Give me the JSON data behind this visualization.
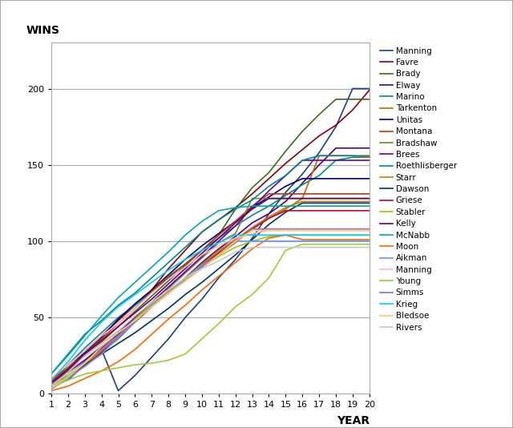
{
  "title_y": "WINS",
  "title_x": "YEAR",
  "xlim": [
    1,
    20
  ],
  "ylim": [
    0,
    230
  ],
  "yticks": [
    0,
    50,
    100,
    150,
    200
  ],
  "xticks": [
    1,
    2,
    3,
    4,
    5,
    6,
    7,
    8,
    9,
    10,
    11,
    12,
    13,
    14,
    15,
    16,
    17,
    18,
    19,
    20
  ],
  "series": [
    {
      "name": "Manning",
      "color": "#1F3F7F",
      "data": [
        6,
        9,
        19,
        29,
        2,
        12,
        24,
        36,
        50,
        62,
        76,
        88,
        102,
        118,
        132,
        144,
        158,
        175,
        200,
        200
      ]
    },
    {
      "name": "Favre",
      "color": "#8B0000",
      "data": [
        8,
        19,
        28,
        38,
        48,
        58,
        68,
        82,
        94,
        106,
        114,
        122,
        131,
        141,
        151,
        160,
        169,
        176,
        186,
        199
      ]
    },
    {
      "name": "Brady",
      "color": "#3A6E1A",
      "data": [
        6,
        15,
        25,
        34,
        44,
        54,
        64,
        74,
        84,
        94,
        104,
        121,
        135,
        145,
        159,
        172,
        183,
        193,
        193,
        193
      ]
    },
    {
      "name": "Elway",
      "color": "#4B0082",
      "data": [
        5,
        14,
        22,
        31,
        39,
        49,
        58,
        67,
        76,
        86,
        95,
        103,
        112,
        118,
        126,
        138,
        150,
        161,
        161,
        161
      ]
    },
    {
      "name": "Marino",
      "color": "#008B8B",
      "data": [
        7,
        19,
        30,
        40,
        50,
        58,
        67,
        76,
        85,
        94,
        102,
        110,
        117,
        123,
        130,
        137,
        143,
        153,
        155,
        155
      ]
    },
    {
      "name": "Tarkenton",
      "color": "#CC6600",
      "data": [
        8,
        17,
        25,
        33,
        41,
        50,
        59,
        66,
        75,
        85,
        93,
        101,
        108,
        115,
        121,
        128,
        156,
        156,
        156,
        155
      ]
    },
    {
      "name": "Unitas",
      "color": "#00008B",
      "data": [
        6,
        17,
        27,
        37,
        49,
        59,
        68,
        78,
        88,
        97,
        105,
        113,
        122,
        129,
        136,
        141,
        141,
        141,
        141,
        141
      ]
    },
    {
      "name": "Montana",
      "color": "#CC3300",
      "data": [
        8,
        17,
        26,
        36,
        46,
        56,
        67,
        77,
        85,
        94,
        104,
        113,
        123,
        131,
        131,
        131,
        131,
        131,
        131,
        131
      ]
    },
    {
      "name": "Bradshaw",
      "color": "#6B8E23",
      "data": [
        5,
        11,
        19,
        27,
        36,
        47,
        57,
        69,
        79,
        89,
        99,
        105,
        128,
        128,
        128,
        128,
        128,
        128,
        128,
        128
      ]
    },
    {
      "name": "Brees",
      "color": "#6600AA",
      "data": [
        7,
        14,
        22,
        30,
        40,
        50,
        60,
        70,
        80,
        90,
        100,
        110,
        122,
        133,
        143,
        153,
        153,
        153,
        153,
        153
      ]
    },
    {
      "name": "Roethlisberger",
      "color": "#008B8B",
      "data": [
        13,
        26,
        39,
        48,
        58,
        66,
        76,
        86,
        96,
        106,
        114,
        121,
        127,
        136,
        143,
        153,
        156,
        156,
        156,
        156
      ]
    },
    {
      "name": "Starr",
      "color": "#B8860B",
      "data": [
        4,
        11,
        19,
        28,
        38,
        48,
        58,
        67,
        76,
        85,
        94,
        101,
        109,
        116,
        122,
        126,
        126,
        126,
        126,
        126
      ]
    },
    {
      "name": "Dawson",
      "color": "#003366",
      "data": [
        5,
        12,
        19,
        26,
        33,
        40,
        48,
        56,
        65,
        73,
        82,
        91,
        101,
        111,
        119,
        125,
        125,
        125,
        125,
        125
      ]
    },
    {
      "name": "Griese",
      "color": "#CC0033",
      "data": [
        5,
        11,
        18,
        27,
        37,
        47,
        57,
        66,
        75,
        84,
        92,
        100,
        108,
        115,
        120,
        120,
        120,
        120,
        120,
        120
      ]
    },
    {
      "name": "Stabler",
      "color": "#99CC00",
      "data": [
        5,
        12,
        20,
        29,
        38,
        49,
        59,
        68,
        75,
        83,
        90,
        96,
        100,
        103,
        104,
        104,
        104,
        104,
        104,
        104
      ]
    },
    {
      "name": "Kelly",
      "color": "#660066",
      "data": [
        7,
        16,
        26,
        35,
        44,
        53,
        62,
        72,
        82,
        92,
        102,
        112,
        121,
        128,
        128,
        128,
        128,
        128,
        128,
        128
      ]
    },
    {
      "name": "McNabb",
      "color": "#00AAAA",
      "data": [
        13,
        25,
        38,
        51,
        63,
        73,
        83,
        93,
        104,
        113,
        120,
        122,
        123,
        123,
        123,
        123,
        123,
        123,
        123,
        123
      ]
    },
    {
      "name": "Moon",
      "color": "#FF6600",
      "data": [
        2,
        5,
        10,
        15,
        21,
        29,
        39,
        49,
        58,
        68,
        77,
        86,
        95,
        102,
        104,
        101,
        101,
        101,
        101,
        101
      ]
    },
    {
      "name": "Aikman",
      "color": "#6699FF",
      "data": [
        3,
        10,
        18,
        26,
        37,
        47,
        58,
        66,
        76,
        84,
        91,
        100,
        100,
        100,
        100,
        100,
        100,
        100,
        100,
        100
      ]
    },
    {
      "name": "Manning",
      "color": "#FFB6C1",
      "data": [
        10,
        19,
        28,
        38,
        46,
        56,
        66,
        75,
        83,
        91,
        97,
        102,
        105,
        107,
        107,
        107,
        107,
        107,
        107,
        107
      ]
    },
    {
      "name": "Young",
      "color": "#9ACD32",
      "data": [
        4,
        9,
        13,
        15,
        17,
        19,
        20,
        22,
        26,
        36,
        46,
        57,
        65,
        76,
        94,
        98,
        98,
        98,
        98,
        98
      ]
    },
    {
      "name": "Simms",
      "color": "#9966CC",
      "data": [
        6,
        14,
        21,
        29,
        38,
        48,
        57,
        66,
        74,
        83,
        91,
        99,
        108,
        108,
        108,
        108,
        108,
        108,
        108,
        108
      ]
    },
    {
      "name": "Krieg",
      "color": "#00CCFF",
      "data": [
        9,
        21,
        35,
        47,
        57,
        65,
        73,
        81,
        88,
        94,
        99,
        104,
        104,
        104,
        104,
        104,
        104,
        104,
        104,
        104
      ]
    },
    {
      "name": "Bledsoe",
      "color": "#FFCC66",
      "data": [
        4,
        11,
        20,
        31,
        40,
        48,
        57,
        66,
        74,
        82,
        91,
        100,
        107,
        107,
        107,
        107,
        107,
        107,
        107,
        107
      ]
    },
    {
      "name": "Rivers",
      "color": "#C8C8C8",
      "data": [
        5,
        14,
        25,
        33,
        41,
        51,
        60,
        68,
        76,
        82,
        87,
        93,
        96,
        96,
        96,
        96,
        96,
        96,
        96,
        96
      ]
    }
  ],
  "bg_color": "#ffffff",
  "grid_color": "#aaaaaa",
  "border_color": "#aaaaaa",
  "label_fontsize": 10,
  "tick_fontsize": 8,
  "legend_fontsize": 7.5,
  "linewidth": 1.2
}
